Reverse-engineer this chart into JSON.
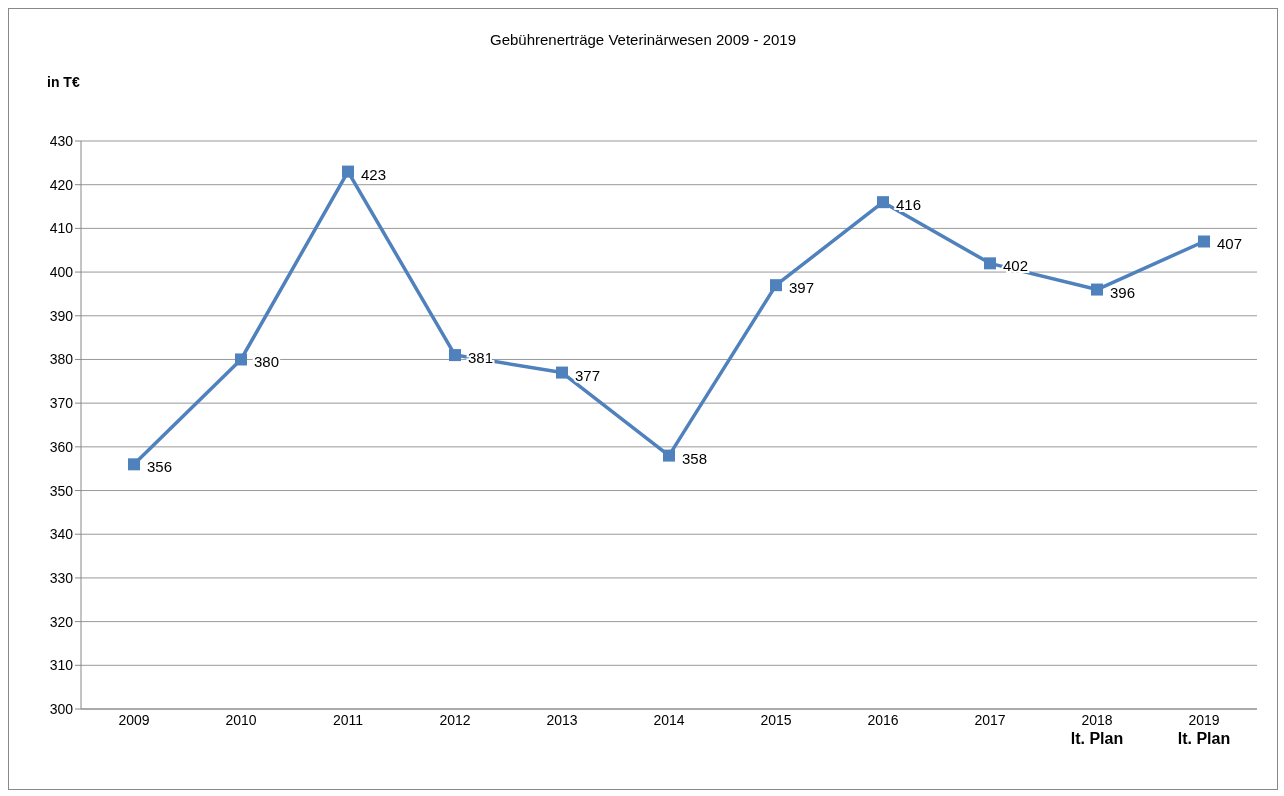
{
  "chart_data": {
    "type": "line",
    "title": "Gebührenerträge Veterinärwesen 2009 - 2019",
    "ylabel": "in T€",
    "categories": [
      "2009",
      "2010",
      "2011",
      "2012",
      "2013",
      "2014",
      "2015",
      "2016",
      "2017",
      "2018\nlt. Plan",
      "2019\nlt. Plan"
    ],
    "series": [
      {
        "color": "#4f81bd",
        "values": [
          356,
          380,
          423,
          381,
          377,
          358,
          397,
          416,
          402,
          396,
          407
        ]
      }
    ],
    "ylim": [
      300,
      430
    ],
    "yticks": [
      300,
      310,
      320,
      330,
      340,
      350,
      360,
      370,
      380,
      390,
      400,
      410,
      420,
      430
    ],
    "grid": "y",
    "marker": "square",
    "line_style": "solid",
    "data_labels": true,
    "legend": false
  }
}
